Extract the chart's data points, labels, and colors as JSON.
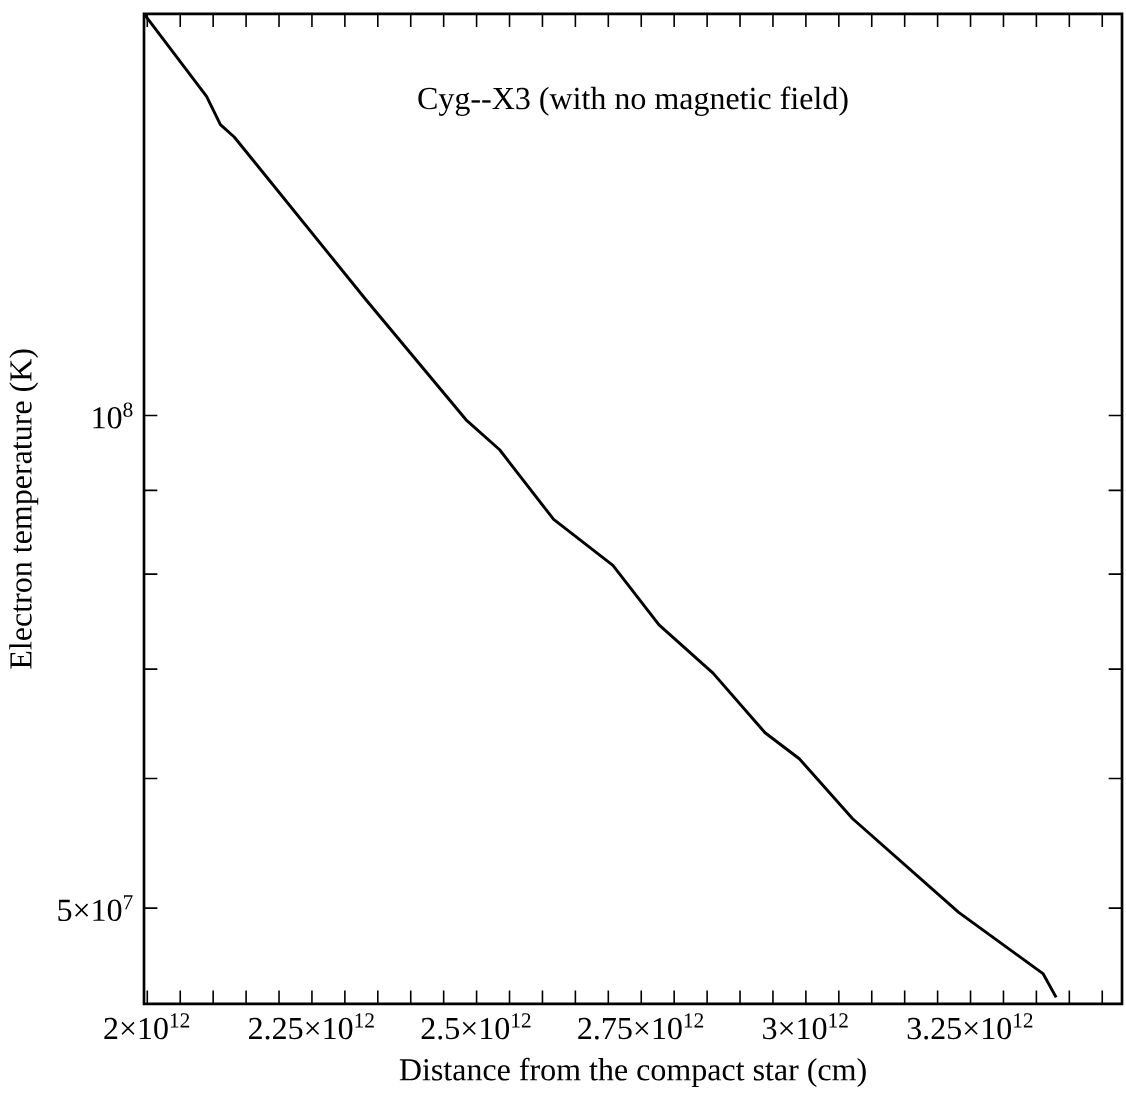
{
  "chart_data": {
    "type": "line",
    "title": "Cyg--X3 (with no magnetic field)",
    "xlabel": "Distance from the compact star (cm)",
    "ylabel": "Electron temperature (K)",
    "log": "y",
    "xlim": [
      1995000000000,
      3480000000000
    ],
    "ylim": [
      43700000,
      176000000
    ],
    "xticks": [
      {
        "value": 2000000000000,
        "label": "2×10$^{12}$"
      },
      {
        "value": 2050000000000,
        "label": null
      },
      {
        "value": 2100000000000,
        "label": null
      },
      {
        "value": 2150000000000,
        "label": null
      },
      {
        "value": 2200000000000,
        "label": null
      },
      {
        "value": 2250000000000,
        "label": "2.25×10$^{12}$"
      },
      {
        "value": 2300000000000,
        "label": null
      },
      {
        "value": 2350000000000,
        "label": null
      },
      {
        "value": 2400000000000,
        "label": null
      },
      {
        "value": 2450000000000,
        "label": null
      },
      {
        "value": 2500000000000,
        "label": "2.5×10$^{12}$"
      },
      {
        "value": 2550000000000,
        "label": null
      },
      {
        "value": 2600000000000,
        "label": null
      },
      {
        "value": 2650000000000,
        "label": null
      },
      {
        "value": 2700000000000,
        "label": null
      },
      {
        "value": 2750000000000,
        "label": "2.75×10$^{12}$"
      },
      {
        "value": 2800000000000,
        "label": null
      },
      {
        "value": 2850000000000,
        "label": null
      },
      {
        "value": 2900000000000,
        "label": null
      },
      {
        "value": 2950000000000,
        "label": null
      },
      {
        "value": 3000000000000,
        "label": "3×10$^{12}$"
      },
      {
        "value": 3050000000000,
        "label": null
      },
      {
        "value": 3100000000000,
        "label": null
      },
      {
        "value": 3150000000000,
        "label": null
      },
      {
        "value": 3200000000000,
        "label": null
      },
      {
        "value": 3250000000000,
        "label": "3.25×10$^{12}$"
      },
      {
        "value": 3300000000000,
        "label": null
      },
      {
        "value": 3350000000000,
        "label": null
      },
      {
        "value": 3400000000000,
        "label": null
      },
      {
        "value": 3450000000000,
        "label": null
      }
    ],
    "yticks": [
      {
        "value": 50000000,
        "label": "5×10$^{7}$"
      },
      {
        "value": 60000000,
        "label": null
      },
      {
        "value": 70000000,
        "label": null
      },
      {
        "value": 80000000,
        "label": null
      },
      {
        "value": 90000000,
        "label": null
      },
      {
        "value": 100000000,
        "label": "10$^{8}$"
      }
    ],
    "series": [
      {
        "color": "#000000",
        "x": [
          1995000000000,
          2090000000000,
          2111000000000,
          2132000000000,
          2332000000000,
          2484000000000,
          2535000000000,
          2617000000000,
          2707000000000,
          2777000000000,
          2859000000000,
          2938000000000,
          2990000000000,
          3071000000000,
          3232000000000,
          3360000000000,
          3380000000000
        ],
        "values": [
          176000000,
          156700000,
          150600000,
          148000000,
          117700000,
          99400000,
          95300000,
          86400000,
          81000000,
          74500000,
          69600000,
          64000000,
          61700000,
          56700000,
          49700000,
          45600000,
          44100000
        ]
      }
    ]
  }
}
